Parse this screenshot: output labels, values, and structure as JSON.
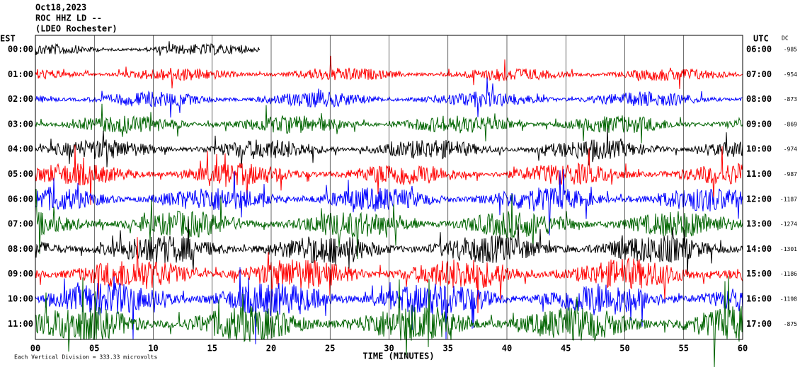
{
  "chart_data": {
    "type": "helicorder",
    "title_lines": [
      "Oct18,2023",
      "ROC HHZ LD --",
      "(LDEO Rochester)"
    ],
    "left_axis_label": "EST",
    "right_axis_label": "UTC",
    "dc_label": "DC",
    "xlabel": "TIME (MINUTES)",
    "footer": "Each Vertical Division = 333.33 microvolts",
    "xlim": [
      0,
      60
    ],
    "xticks": [
      {
        "value": 0,
        "label": "00"
      },
      {
        "value": 5,
        "label": "05"
      },
      10,
      15,
      20,
      25,
      30,
      35,
      40,
      45,
      50,
      55,
      60
    ],
    "rows": [
      {
        "est": "00:00",
        "utc": "06:00",
        "dc": -985,
        "color": "#000000"
      },
      {
        "est": "01:00",
        "utc": "07:00",
        "dc": -954,
        "color": "#ff0000"
      },
      {
        "est": "02:00",
        "utc": "08:00",
        "dc": -873,
        "color": "#0000ff"
      },
      {
        "est": "03:00",
        "utc": "09:00",
        "dc": -869,
        "color": "#006400"
      },
      {
        "est": "04:00",
        "utc": "10:00",
        "dc": -974,
        "color": "#000000"
      },
      {
        "est": "05:00",
        "utc": "11:00",
        "dc": -987,
        "color": "#ff0000"
      },
      {
        "est": "06:00",
        "utc": "12:00",
        "dc": -1187,
        "color": "#0000ff"
      },
      {
        "est": "07:00",
        "utc": "13:00",
        "dc": -1274,
        "color": "#006400"
      },
      {
        "est": "08:00",
        "utc": "14:00",
        "dc": -1301,
        "color": "#000000"
      },
      {
        "est": "09:00",
        "utc": "15:00",
        "dc": -1186,
        "color": "#ff0000"
      },
      {
        "est": "10:00",
        "utc": "16:00",
        "dc": -1198,
        "color": "#0000ff"
      },
      {
        "est": "11:00",
        "utc": "17:00",
        "dc": -875,
        "color": "#006400"
      }
    ]
  }
}
